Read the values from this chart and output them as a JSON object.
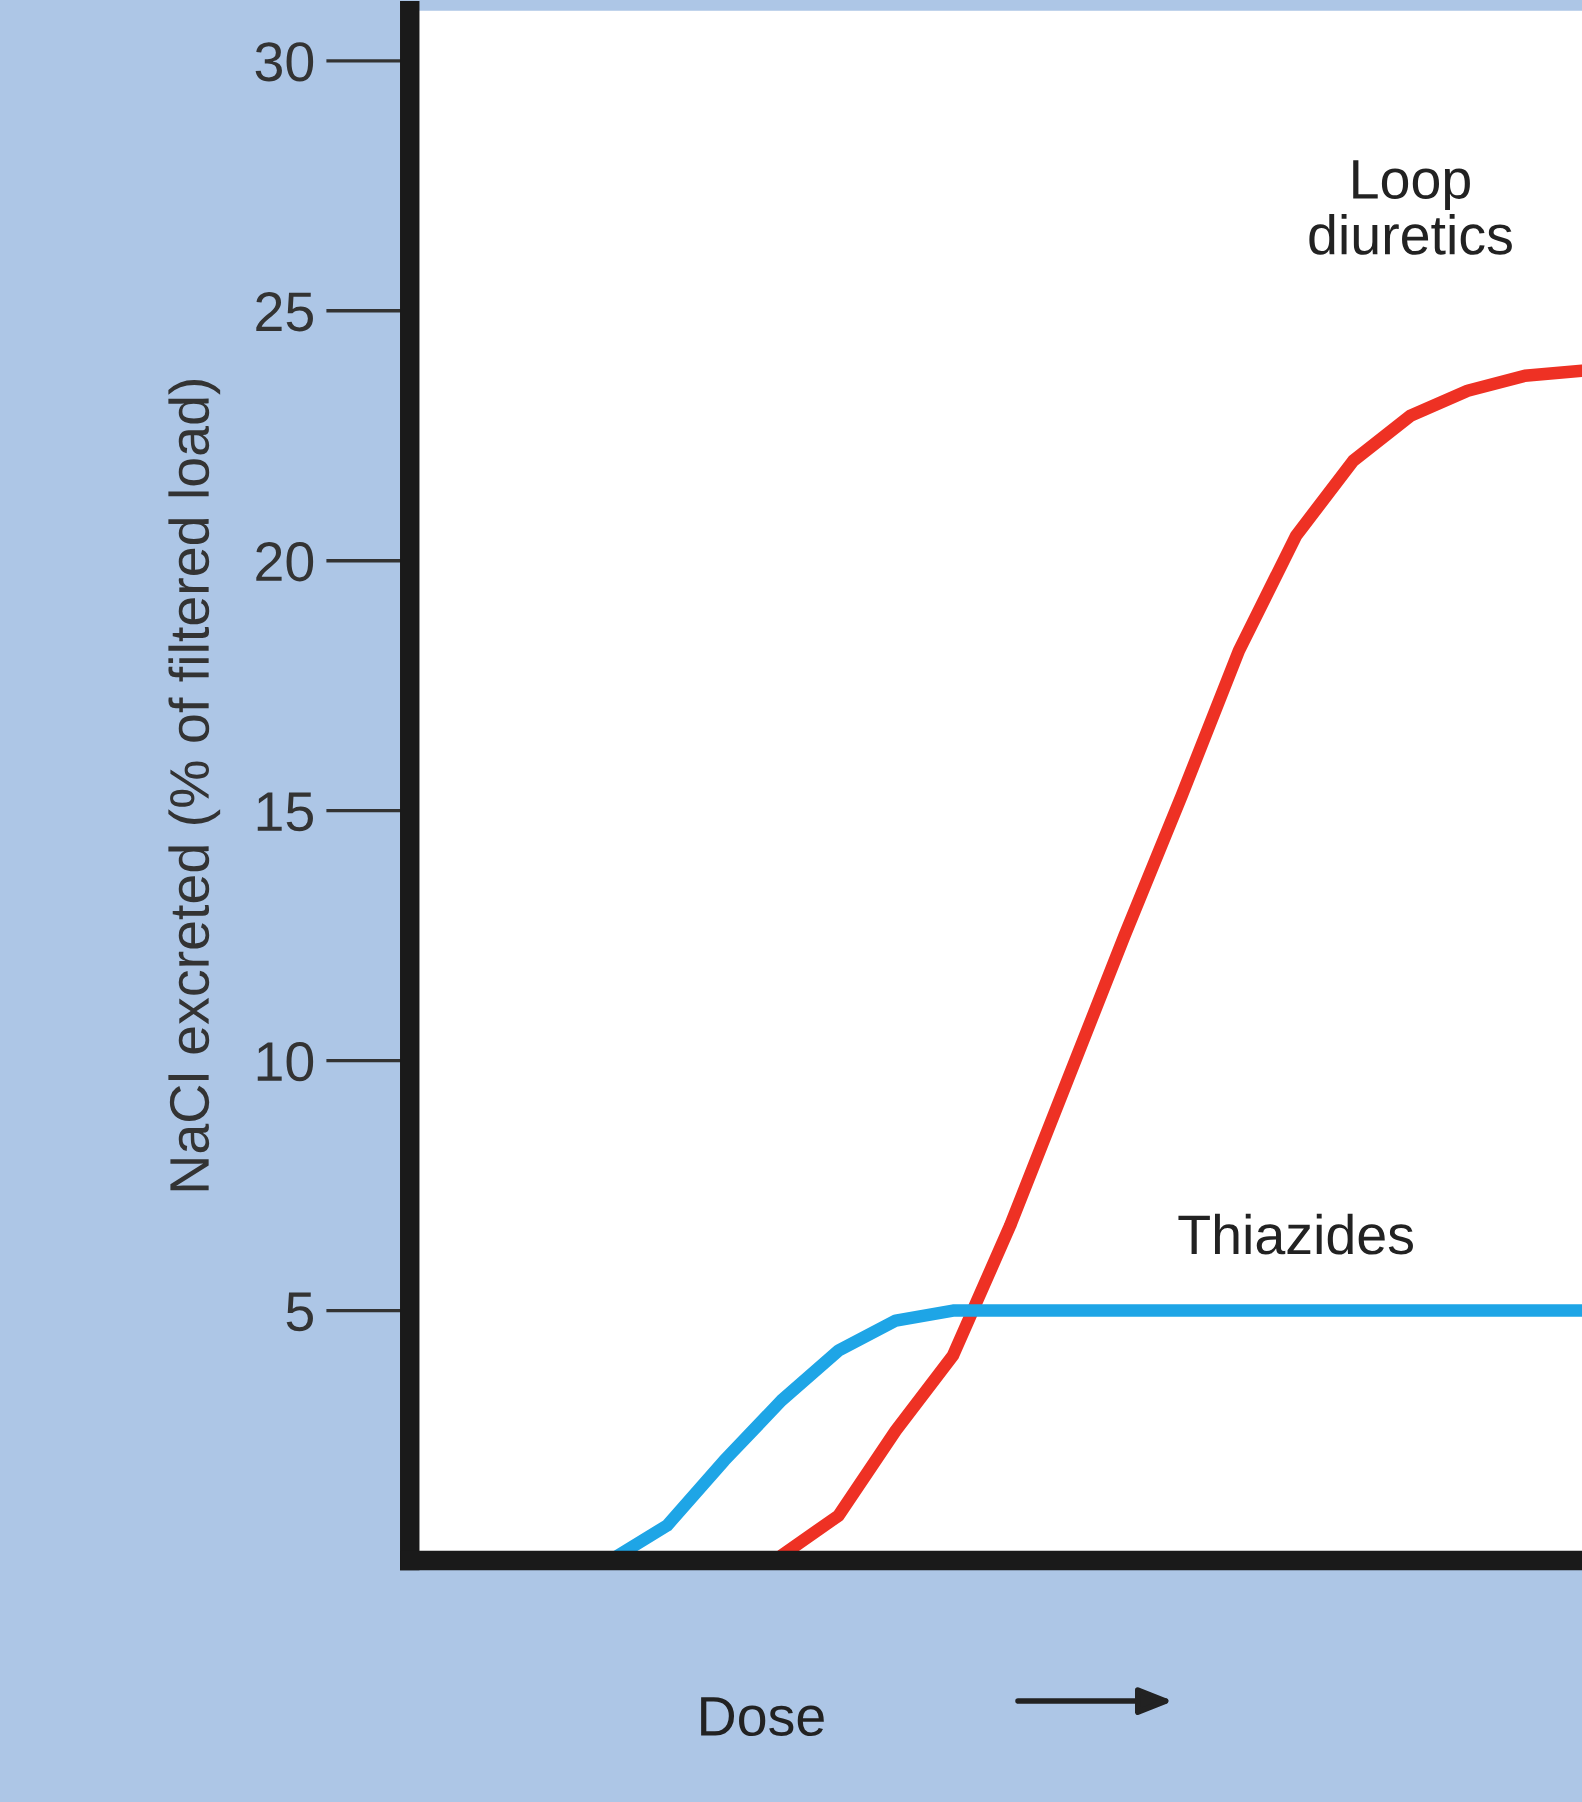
{
  "chart_data": {
    "type": "line",
    "ylabel": "NaCl excreted (% of filtered load)",
    "xlabel": "Dose",
    "categories": [
      null,
      null,
      null,
      null,
      null,
      null,
      null,
      null,
      null,
      null,
      null,
      null,
      null,
      null,
      null,
      null,
      null,
      null,
      null,
      null,
      null
    ],
    "series": [
      {
        "name": "Loop\ndiuretics",
        "color": "#ee3124",
        "values": [
          null,
          null,
          null,
          null,
          null,
          null,
          0.1,
          0.9,
          2.6,
          4.1,
          6.7,
          9.6,
          12.5,
          15.3,
          18.2,
          20.5,
          22.0,
          22.9,
          23.4,
          23.7,
          23.8
        ]
      },
      {
        "name": "Thiazides",
        "color": "#1ea5e6",
        "values": [
          null,
          null,
          null,
          0,
          0.7,
          2.0,
          3.2,
          4.2,
          4.8,
          5,
          5,
          5,
          5,
          5,
          5,
          5,
          5,
          5,
          5,
          5,
          5
        ]
      }
    ],
    "ylim": [
      0,
      31
    ],
    "yticks": [
      5,
      10,
      15,
      20,
      25,
      30
    ],
    "grid": false,
    "legend": false,
    "marker": "none",
    "line_style": "solid"
  }
}
